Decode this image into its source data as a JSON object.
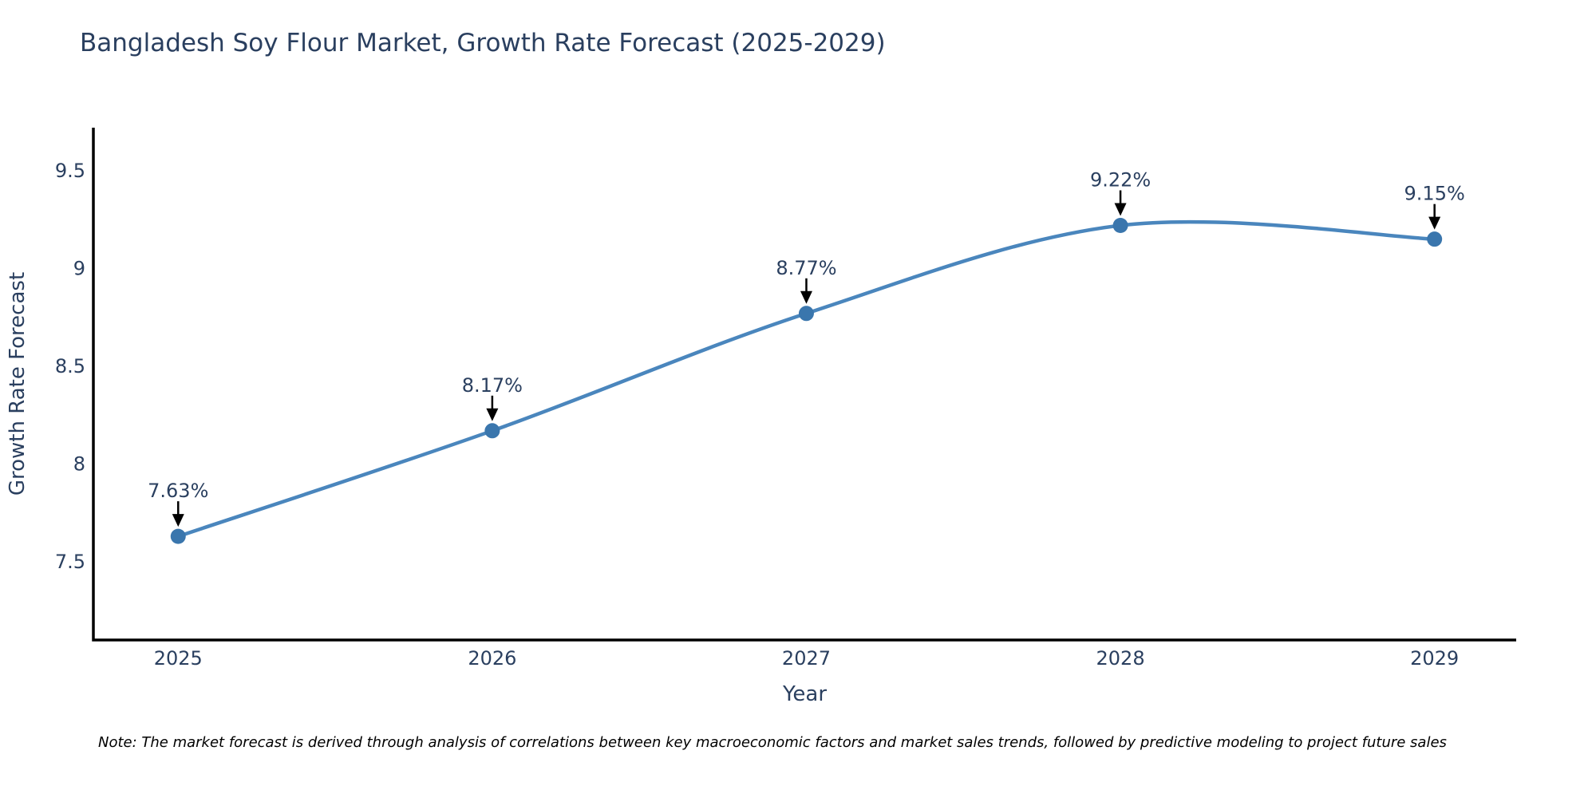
{
  "title": "Bangladesh Soy Flour Market, Growth Rate Forecast (2025-2029)",
  "note": "Note: The market forecast is derived through analysis of correlations between key macroeconomic factors and market sales trends, followed by predictive modeling to project future sales",
  "chart_data": {
    "type": "line",
    "title": "Bangladesh Soy Flour Market, Growth Rate Forecast (2025-2029)",
    "xlabel": "Year",
    "ylabel": "Growth Rate Forecast",
    "x": [
      2025,
      2026,
      2027,
      2028,
      2029
    ],
    "values": [
      7.63,
      8.17,
      8.77,
      9.22,
      9.15
    ],
    "point_labels": [
      "7.63%",
      "8.17%",
      "8.77%",
      "9.22%",
      "9.15%"
    ],
    "x_tick_labels": [
      "2025",
      "2026",
      "2027",
      "2028",
      "2029"
    ],
    "y_ticks": [
      7.5,
      8,
      8.5,
      9,
      9.5
    ],
    "y_tick_labels": [
      "7.5",
      "8",
      "8.5",
      "9",
      "9.5"
    ],
    "xlim": [
      2024.73,
      2029.26
    ],
    "ylim": [
      7.1,
      9.72
    ],
    "line_shape": "spline",
    "grid": false,
    "legend": "none",
    "colors": {
      "line": "#4a86bd",
      "marker": "#3a76ad",
      "axis": "#000000",
      "text": "#2a3f5f",
      "annotation_text": "#2a3f5f",
      "annotation_arrow": "#000000"
    }
  }
}
